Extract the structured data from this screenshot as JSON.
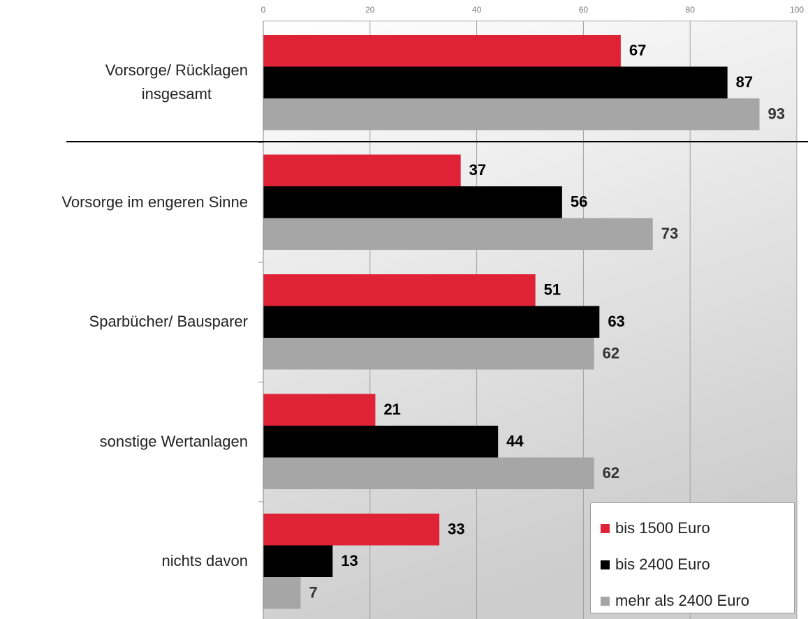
{
  "chart_data": {
    "type": "bar",
    "orientation": "horizontal",
    "categories": [
      "Vorsorge/ Rücklagen\ninsgesamt",
      "Vorsorge im engeren Sinne",
      "Sparbücher/ Bausparer",
      "sonstige Wertanlagen",
      "nichts davon"
    ],
    "series": [
      {
        "name": "bis 1500 Euro",
        "color": "#e02236",
        "values": [
          67,
          37,
          51,
          21,
          33
        ]
      },
      {
        "name": "bis 2400 Euro",
        "color": "#000000",
        "values": [
          87,
          56,
          63,
          44,
          13
        ]
      },
      {
        "name": "mehr als 2400 Euro",
        "color": "#a6a6a6",
        "values": [
          93,
          73,
          62,
          62,
          7
        ]
      }
    ],
    "xlim": [
      0,
      100
    ],
    "xticks": [
      0,
      20,
      40,
      60,
      80,
      100
    ],
    "grid": true,
    "legend": "lower right"
  }
}
